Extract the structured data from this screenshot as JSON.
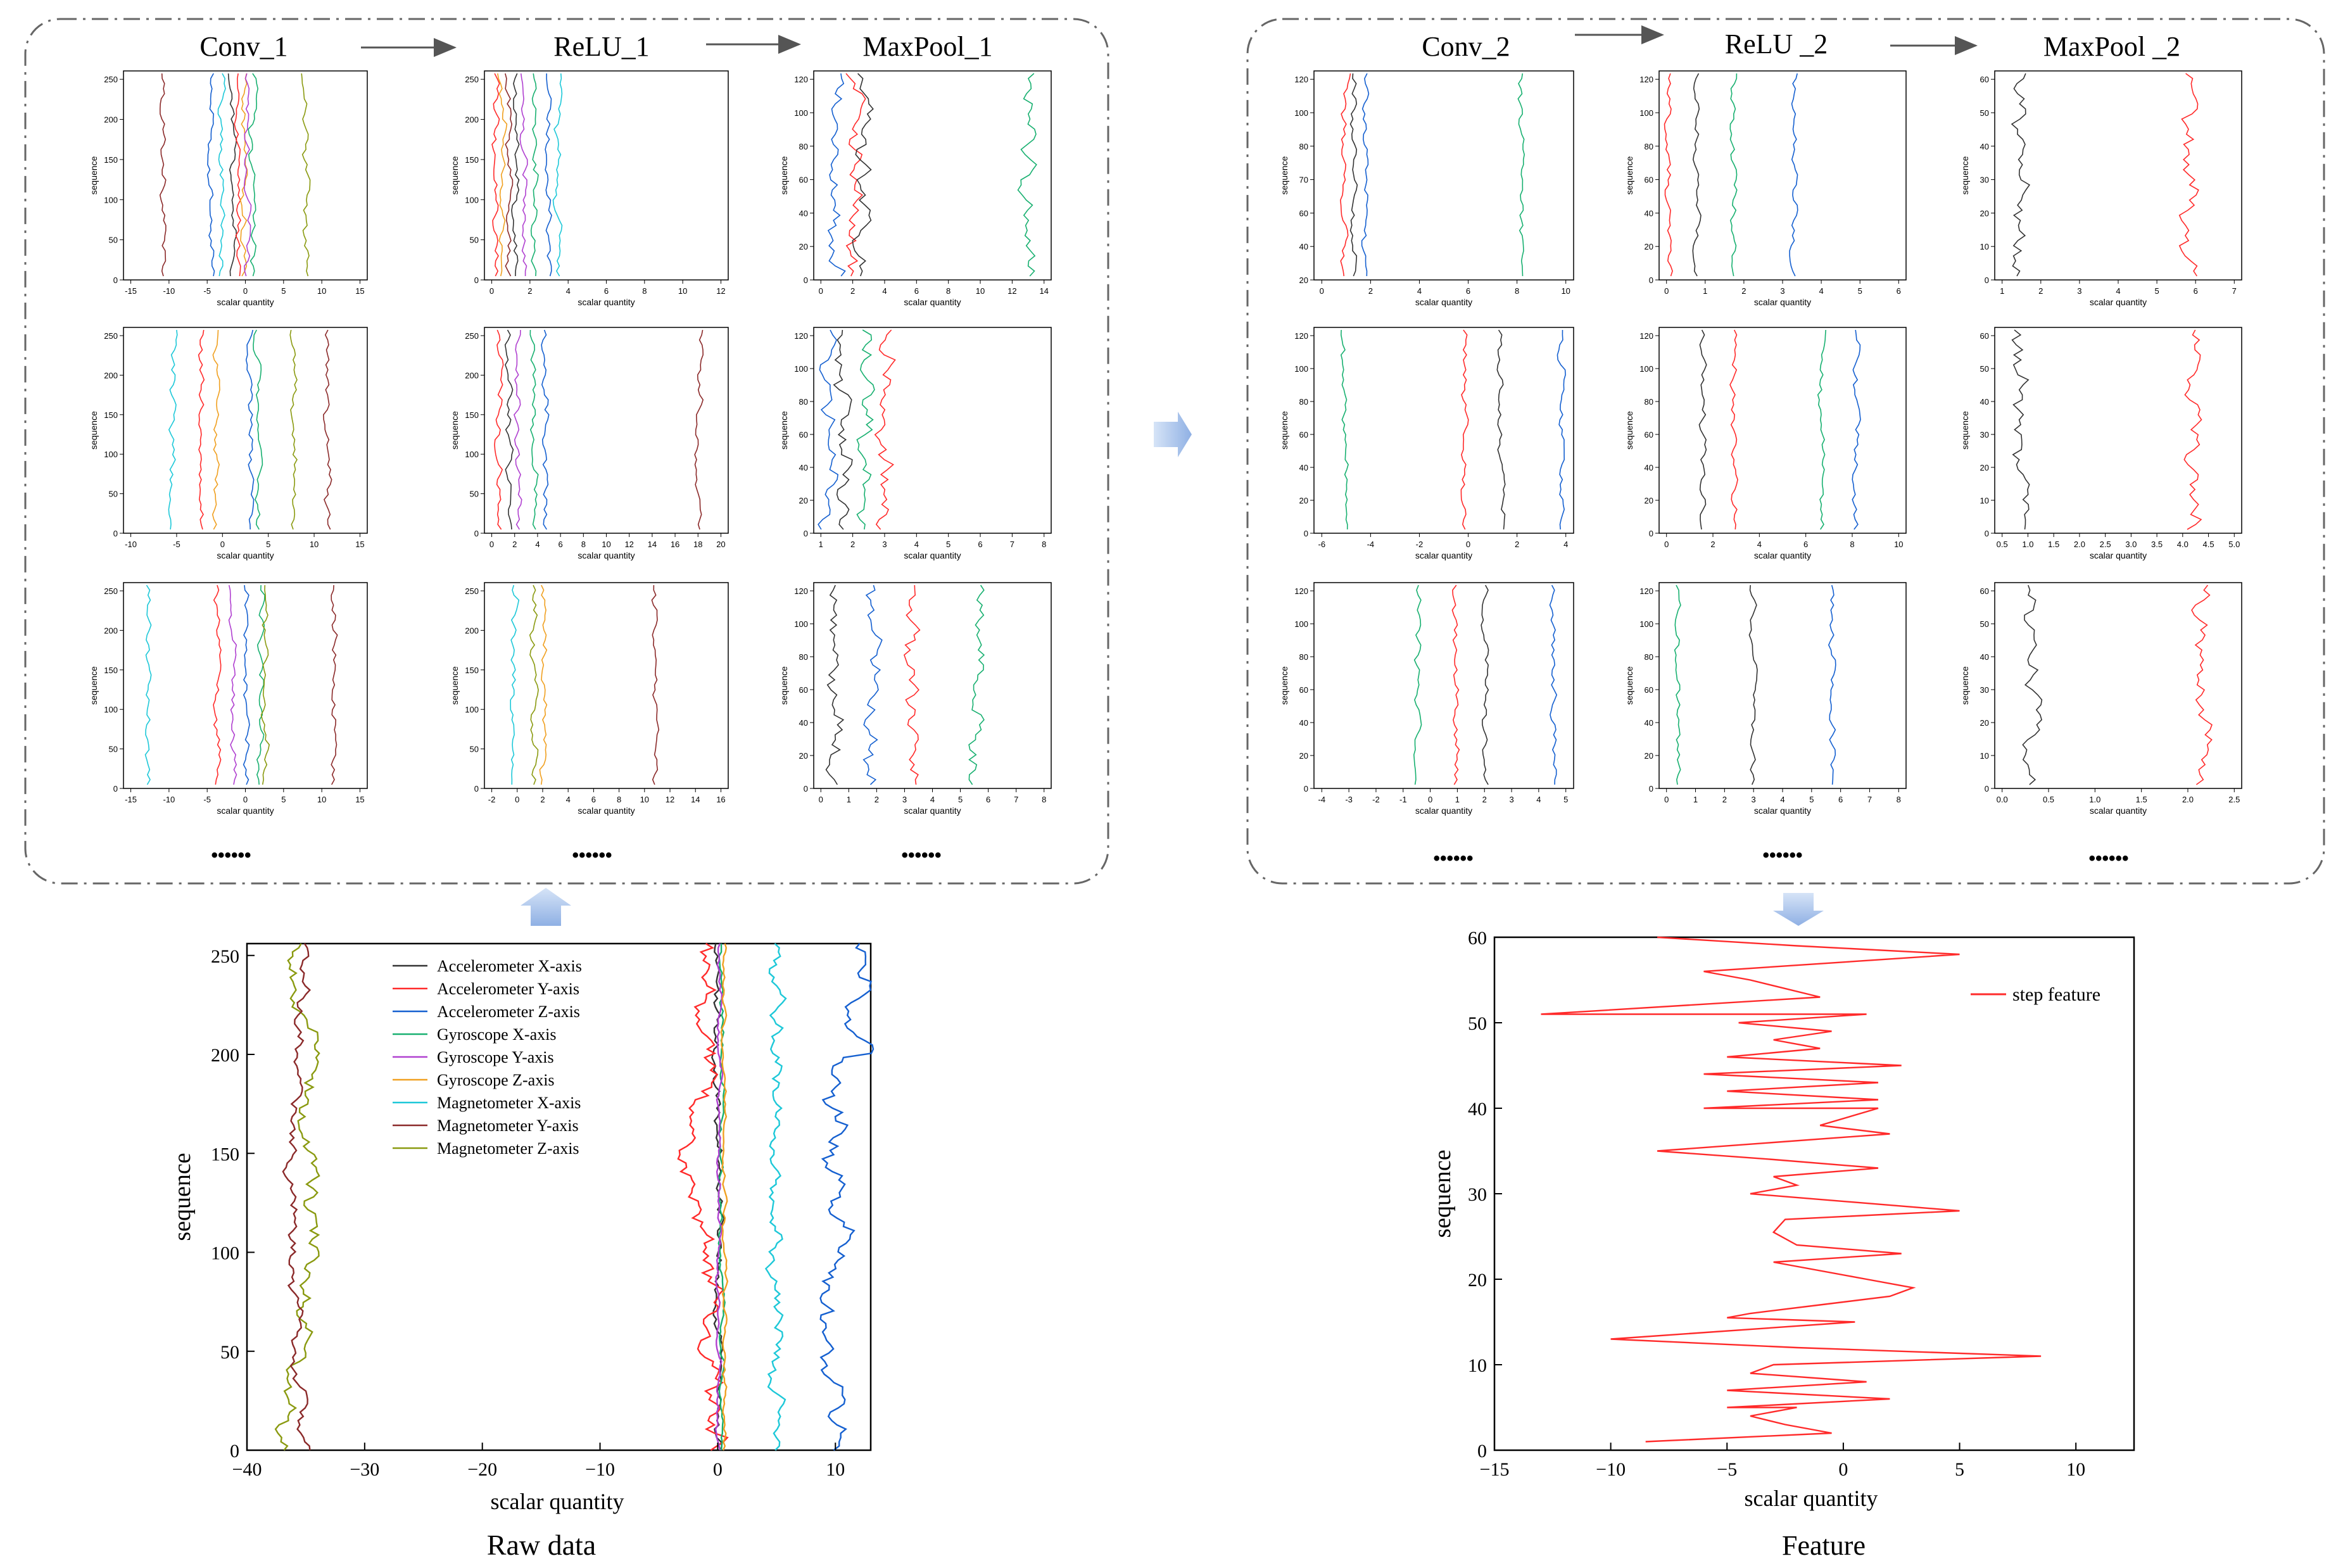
{
  "colors": {
    "black": "#333333",
    "red": "#ff2a2a",
    "blue": "#1560d0",
    "green": "#18b070",
    "purple": "#b040d0",
    "orange": "#f0a020",
    "cyan": "#1ec8d8",
    "brown": "#8b2a2a",
    "olive": "#8a9a10",
    "box_border": "#666666",
    "arrow": "#555555",
    "big_arrow": "#a9c4ea"
  },
  "stages": {
    "conv1": "Conv_1",
    "relu1": "ReLU_1",
    "maxpool1": "MaxPool_1",
    "conv2": "Conv_2",
    "relu2": "ReLU _2",
    "maxpool2": "MaxPool _2"
  },
  "ellipsis": "••••••",
  "small_axis": {
    "ylabel": "sequence",
    "xlabel": "scalar quantity"
  },
  "captions": {
    "raw": "Raw data",
    "feature": "Feature"
  },
  "raw_chart": {
    "xlabel": "scalar quantity",
    "ylabel": "sequence",
    "xticks": [
      "−40",
      "−30",
      "−20",
      "−10",
      "0",
      "10"
    ],
    "yticks": [
      "0",
      "50",
      "100",
      "150",
      "200",
      "250"
    ],
    "legend": [
      {
        "label": "Accelerometer X-axis",
        "color": "#333333"
      },
      {
        "label": "Accelerometer Y-axis",
        "color": "#ff2a2a"
      },
      {
        "label": "Accelerometer Z-axis",
        "color": "#1560d0"
      },
      {
        "label": "Gyroscope X-axis",
        "color": "#18b070"
      },
      {
        "label": "Gyroscope Y-axis",
        "color": "#b040d0"
      },
      {
        "label": "Gyroscope Z-axis",
        "color": "#f0a020"
      },
      {
        "label": "Magnetometer X-axis",
        "color": "#1ec8d8"
      },
      {
        "label": "Magnetometer Y-axis",
        "color": "#8b2a2a"
      },
      {
        "label": "Magnetometer Z-axis",
        "color": "#8a9a10"
      }
    ]
  },
  "feature_chart": {
    "xlabel": "scalar quantity",
    "ylabel": "sequence",
    "xticks": [
      "−15",
      "−10",
      "−5",
      "0",
      "5",
      "10"
    ],
    "yticks": [
      "0",
      "10",
      "20",
      "30",
      "40",
      "50",
      "60"
    ],
    "legend": "step feature"
  },
  "panel_ticks": {
    "c1r1x": [
      "-15",
      "-10",
      "-5",
      "0",
      "5",
      "10",
      "15"
    ],
    "c1r2x": [
      "-10",
      "-5",
      "0",
      "5",
      "10",
      "15"
    ],
    "c1r3x": [
      "-15",
      "-10",
      "-5",
      "0",
      "5",
      "10",
      "15"
    ],
    "r1r1x": [
      "0",
      "2",
      "4",
      "6",
      "8",
      "10",
      "12"
    ],
    "r1r2x": [
      "0",
      "2",
      "4",
      "6",
      "8",
      "10",
      "12",
      "14",
      "16",
      "18",
      "20"
    ],
    "r1r3x": [
      "-2",
      "0",
      "2",
      "4",
      "6",
      "8",
      "10",
      "12",
      "14",
      "16"
    ],
    "m1r1x": [
      "0",
      "2",
      "4",
      "6",
      "8",
      "10",
      "12",
      "14"
    ],
    "m1r2x": [
      "1",
      "2",
      "3",
      "4",
      "5",
      "6",
      "7",
      "8"
    ],
    "m1r3x": [
      "0",
      "1",
      "2",
      "3",
      "4",
      "5",
      "6",
      "7",
      "8"
    ],
    "c2r1x": [
      "0",
      "2",
      "4",
      "6",
      "8",
      "10"
    ],
    "c2r2x": [
      "-6",
      "-4",
      "-2",
      "0",
      "2",
      "4"
    ],
    "c2r3x": [
      "-4",
      "-3",
      "-2",
      "-1",
      "0",
      "1",
      "2",
      "3",
      "4",
      "5"
    ],
    "r2r1x": [
      "0",
      "1",
      "2",
      "3",
      "4",
      "5",
      "6"
    ],
    "r2r2x": [
      "0",
      "2",
      "4",
      "6",
      "8",
      "10"
    ],
    "r2r3x": [
      "0",
      "1",
      "2",
      "3",
      "4",
      "5",
      "6",
      "7",
      "8"
    ],
    "m2r1x": [
      "1",
      "2",
      "3",
      "4",
      "5",
      "6",
      "7"
    ],
    "m2r2x": [
      "0.5",
      "1.0",
      "1.5",
      "2.0",
      "2.5",
      "3.0",
      "3.5",
      "4.0",
      "4.5",
      "5.0"
    ],
    "m2r3x": [
      "0.0",
      "0.5",
      "1.0",
      "1.5",
      "2.0",
      "2.5"
    ],
    "y256": [
      "0",
      "50",
      "100",
      "150",
      "200",
      "250"
    ],
    "y128": [
      "0",
      "20",
      "40",
      "60",
      "80",
      "100",
      "120"
    ],
    "y128b": [
      "20",
      "40",
      "60",
      "70",
      "80",
      "100",
      "120"
    ],
    "y64": [
      "0",
      "10",
      "20",
      "30",
      "40",
      "50",
      "60"
    ]
  }
}
